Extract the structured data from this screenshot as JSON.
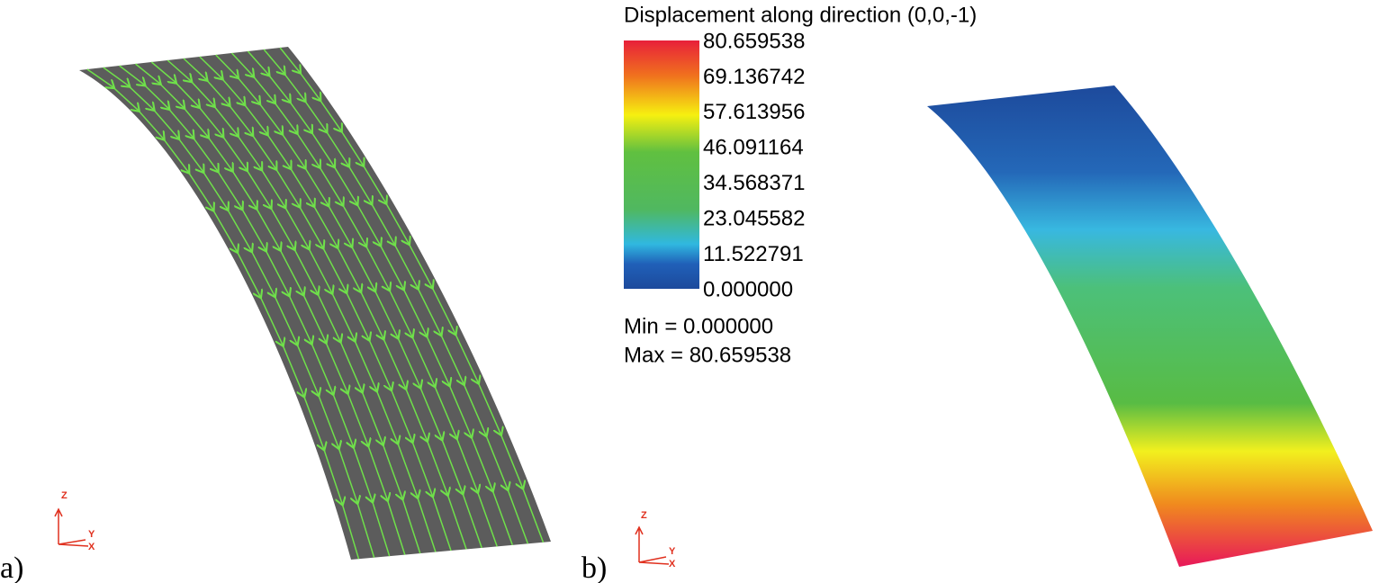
{
  "panels": [
    {
      "label": "a)",
      "triad": {
        "z": "Z",
        "y": "Y",
        "x": "X"
      }
    },
    {
      "label": "b)",
      "triad": {
        "z": "Z",
        "y": "Y",
        "x": "X"
      },
      "legend": {
        "title": "Displacement along direction (0,0,-1)",
        "labels": [
          "80.659538",
          "69.136742",
          "57.613956",
          "46.091164",
          "34.568371",
          "23.045582",
          "11.522791",
          "0.000000"
        ],
        "min": "Min =  0.000000",
        "max": "Max =  80.659538"
      }
    }
  ]
}
